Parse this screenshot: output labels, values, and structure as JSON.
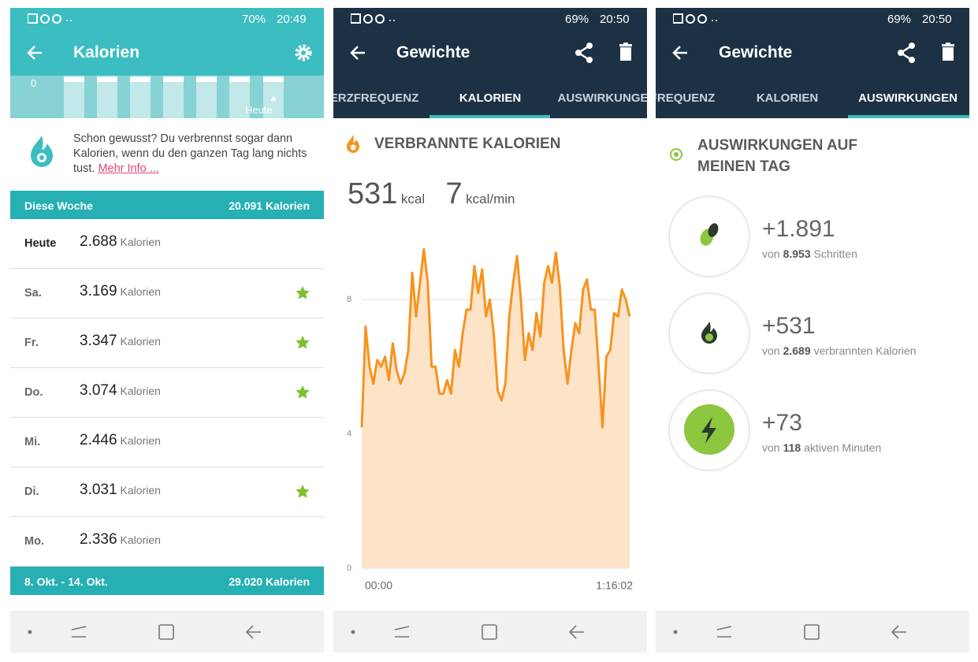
{
  "screens": [
    {
      "status": {
        "battery": "70%",
        "time": "20:49"
      },
      "header": {
        "title": "Kalorien"
      },
      "strip": {
        "zero": "0",
        "today": "Heute"
      },
      "tip": {
        "text": "Schon gewusst? Du verbrennst sogar dann Kalorien, wenn du den ganzen Tag lang nichts tust.",
        "link": "Mehr Info ..."
      },
      "week": {
        "label": "Diese Woche",
        "total": "20.091 Kalorien"
      },
      "days": [
        {
          "day": "Heute",
          "value": "2.688",
          "unit": "Kalorien",
          "star": false
        },
        {
          "day": "Sa.",
          "value": "3.169",
          "unit": "Kalorien",
          "star": true
        },
        {
          "day": "Fr.",
          "value": "3.347",
          "unit": "Kalorien",
          "star": true
        },
        {
          "day": "Do.",
          "value": "3.074",
          "unit": "Kalorien",
          "star": true
        },
        {
          "day": "Mi.",
          "value": "2.446",
          "unit": "Kalorien",
          "star": false
        },
        {
          "day": "Di.",
          "value": "3.031",
          "unit": "Kalorien",
          "star": true
        },
        {
          "day": "Mo.",
          "value": "2.336",
          "unit": "Kalorien",
          "star": false
        }
      ],
      "previous_week": {
        "label": "8. Okt. - 14. Okt.",
        "total": "29.020 Kalorien"
      }
    },
    {
      "status": {
        "battery": "69%",
        "time": "20:50"
      },
      "header": {
        "title": "Gewichte"
      },
      "tabs": [
        "ERZFREQUENZ",
        "KALORIEN",
        "AUSWIRKUNGE"
      ],
      "section_title": "VERBRANNTE KALORIEN",
      "total": {
        "value": "531",
        "unit": "kcal"
      },
      "rate": {
        "value": "7",
        "unit": "kcal/min"
      }
    },
    {
      "status": {
        "battery": "69%",
        "time": "20:50"
      },
      "header": {
        "title": "Gewichte"
      },
      "tabs": [
        "FREQUENZ",
        "KALORIEN",
        "AUSWIRKUNGEN"
      ],
      "section_title": "AUSWIRKUNGEN AUF MEINEN TAG",
      "items": [
        {
          "value": "+1.891",
          "pre": "von",
          "number": "8.953",
          "post": "Schritten"
        },
        {
          "value": "+531",
          "pre": "von",
          "number": "2.689",
          "post": "verbrannten Kalorien"
        },
        {
          "value": "+73",
          "pre": "von",
          "number": "118",
          "post": "aktiven Minuten"
        }
      ]
    }
  ],
  "chart_data": {
    "type": "area",
    "color": "#f7931e",
    "fill": "#fde3c8",
    "categories": [
      "00:00",
      null,
      null,
      null,
      null,
      null,
      null,
      null,
      null,
      null,
      null,
      null,
      null,
      null,
      null,
      null,
      null,
      null,
      null,
      null,
      null,
      null,
      null,
      null,
      null,
      null,
      null,
      null,
      null,
      null,
      null,
      null,
      null,
      null,
      null,
      null,
      null,
      null,
      null,
      null,
      null,
      null,
      null,
      null,
      null,
      null,
      null,
      null,
      null,
      null,
      null,
      null,
      null,
      null,
      null,
      null,
      null,
      null,
      null,
      null,
      null,
      null,
      null,
      null,
      null,
      null,
      null,
      null,
      null,
      "1:16:02"
    ],
    "values": [
      4.2,
      7.2,
      6.0,
      5.5,
      6.2,
      6.0,
      6.3,
      5.6,
      6.7,
      5.9,
      5.5,
      5.8,
      6.5,
      8.8,
      7.5,
      8.5,
      9.5,
      8.5,
      6.0,
      6.0,
      5.2,
      5.2,
      5.6,
      5.2,
      6.5,
      6.0,
      7.0,
      7.7,
      7.7,
      9.0,
      8.2,
      8.9,
      7.5,
      8.0,
      7.0,
      5.3,
      5.0,
      5.5,
      7.5,
      8.5,
      9.3,
      8.0,
      6.2,
      7.0,
      6.5,
      7.6,
      6.9,
      8.5,
      9.0,
      8.5,
      9.4,
      8.4,
      6.5,
      5.5,
      6.5,
      7.3,
      7.0,
      8.3,
      8.6,
      7.7,
      7.7,
      6.0,
      4.2,
      6.3,
      6.5,
      7.6,
      7.5,
      8.3,
      8.0,
      7.5
    ],
    "ylim": [
      0,
      10
    ],
    "yticks": [
      0,
      4,
      8
    ],
    "grid": true
  }
}
